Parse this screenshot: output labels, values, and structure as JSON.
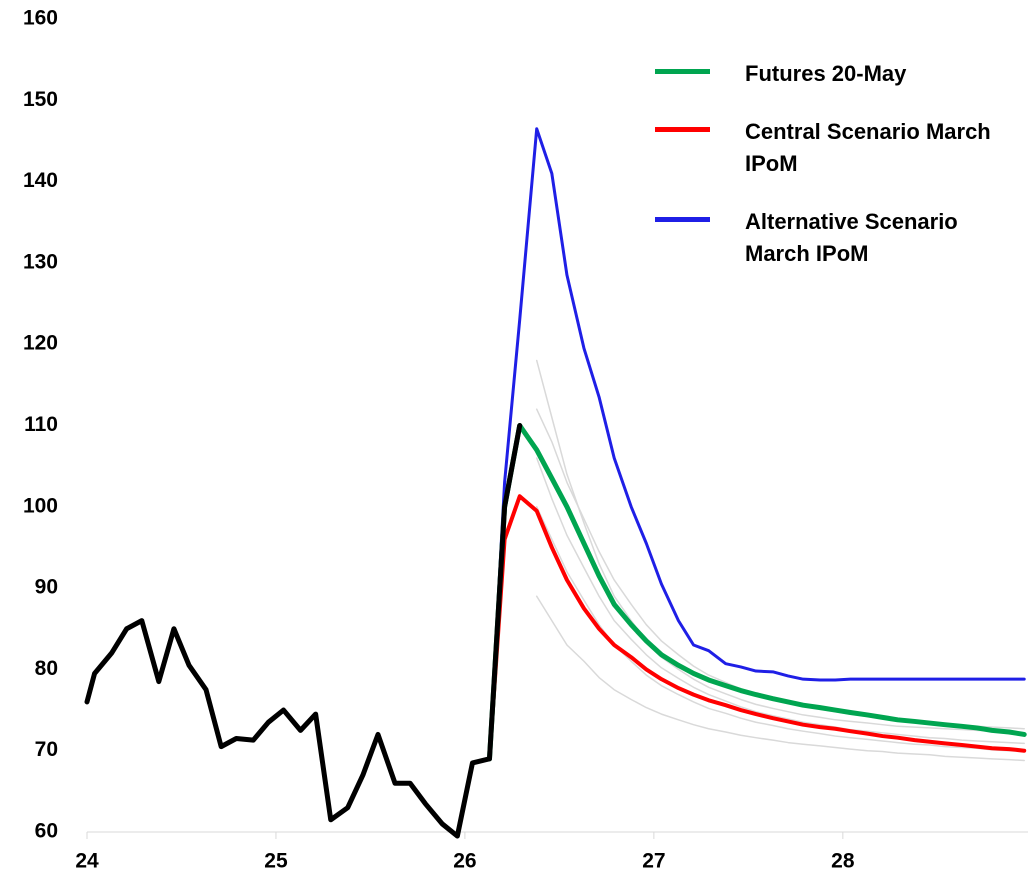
{
  "chart_data": {
    "type": "line",
    "xlim": [
      24,
      28.98
    ],
    "xticks": [
      24,
      25,
      26,
      27,
      28
    ],
    "ylim": [
      60,
      160
    ],
    "yticks": [
      60,
      70,
      80,
      90,
      100,
      110,
      120,
      130,
      140,
      150,
      160
    ],
    "legend": "upper right",
    "series": [
      {
        "color": "#d9d9d9",
        "x": [
          26.38,
          26.46,
          26.54,
          26.63,
          26.71,
          26.79,
          26.88,
          26.96,
          27.04,
          27.13,
          27.21,
          27.29,
          27.38,
          27.46,
          27.54,
          27.63,
          27.71,
          27.79,
          27.88,
          27.96,
          28.04,
          28.13,
          28.21,
          28.29,
          28.38,
          28.46,
          28.54,
          28.63,
          28.71,
          28.79,
          28.88,
          28.96
        ],
        "values": [
          118,
          111,
          104,
          98,
          93,
          89,
          86,
          83.5,
          81.5,
          80,
          78.8,
          77.8,
          77,
          76.3,
          75.7,
          75.2,
          74.8,
          74.4,
          74.1,
          73.8,
          73.6,
          73.4,
          73.2,
          73,
          72.9,
          72.8,
          72.7,
          72.6,
          72.5,
          72.4,
          72.3,
          72.2
        ]
      },
      {
        "color": "#d9d9d9",
        "x": [
          26.38,
          26.46,
          26.54,
          26.63,
          26.71,
          26.79,
          26.88,
          26.96,
          27.04,
          27.13,
          27.21,
          27.29,
          27.38,
          27.46,
          27.54,
          27.63,
          27.71,
          27.79,
          27.88,
          27.96,
          28.04,
          28.13,
          28.21,
          28.29,
          28.38,
          28.46,
          28.54,
          28.63,
          28.71,
          28.79,
          28.88,
          28.96
        ],
        "values": [
          89,
          86,
          83,
          81,
          79,
          77.5,
          76.3,
          75.3,
          74.5,
          73.8,
          73.2,
          72.7,
          72.3,
          71.9,
          71.6,
          71.3,
          71,
          70.8,
          70.6,
          70.4,
          70.2,
          70,
          69.9,
          69.7,
          69.6,
          69.5,
          69.3,
          69.2,
          69.1,
          69,
          68.9,
          68.8
        ]
      },
      {
        "color": "#d9d9d9",
        "x": [
          26.38,
          26.46,
          26.54,
          26.63,
          26.71,
          26.79,
          26.88,
          26.96,
          27.04,
          27.13,
          27.21,
          27.29,
          27.38,
          27.46,
          27.54,
          27.63,
          27.71,
          27.79,
          27.88,
          27.96,
          28.04,
          28.13,
          28.21,
          28.29,
          28.38,
          28.46,
          28.54,
          28.63,
          28.71,
          28.79,
          28.88,
          28.96
        ],
        "values": [
          112,
          108,
          103,
          98.5,
          94.5,
          91,
          88,
          85.5,
          83.5,
          81.8,
          80.4,
          79.3,
          78.4,
          77.6,
          77,
          76.4,
          75.9,
          75.5,
          75.1,
          74.8,
          74.5,
          74.2,
          74,
          73.8,
          73.6,
          73.4,
          73.2,
          73.1,
          73,
          72.9,
          72.8,
          72.7
        ]
      },
      {
        "color": "#d9d9d9",
        "x": [
          26.38,
          26.46,
          26.54,
          26.63,
          26.71,
          26.79,
          26.88,
          26.96,
          27.04,
          27.13,
          27.21,
          27.29,
          27.38,
          27.46,
          27.54,
          27.63,
          27.71,
          27.79,
          27.88,
          27.96,
          28.04,
          28.13,
          28.21,
          28.29,
          28.38,
          28.46,
          28.54,
          28.63,
          28.71,
          28.79,
          28.88,
          28.96
        ],
        "values": [
          100,
          96,
          92,
          88.5,
          85.5,
          83,
          81,
          79.3,
          78,
          76.9,
          76,
          75.2,
          74.6,
          74,
          73.5,
          73.1,
          72.7,
          72.4,
          72.1,
          71.8,
          71.6,
          71.4,
          71.2,
          71,
          70.8,
          70.7,
          70.5,
          70.4,
          70.3,
          70.1,
          70,
          69.9
        ]
      },
      {
        "color": "#d9d9d9",
        "x": [
          26.38,
          26.46,
          26.54,
          26.63,
          26.71,
          26.79,
          26.88,
          26.96,
          27.04,
          27.13,
          27.21,
          27.29,
          27.38,
          27.46,
          27.54,
          27.63,
          27.71,
          27.79,
          27.88,
          27.96,
          28.04,
          28.13,
          28.21,
          28.29,
          28.38,
          28.46,
          28.54,
          28.63,
          28.71,
          28.79,
          28.88,
          28.96
        ],
        "values": [
          106,
          101,
          96.5,
          92.5,
          89,
          86,
          83.7,
          81.8,
          80.2,
          78.9,
          77.8,
          76.9,
          76.1,
          75.4,
          74.8,
          74.3,
          73.9,
          73.5,
          73.2,
          72.9,
          72.6,
          72.4,
          72.2,
          72,
          71.8,
          71.6,
          71.5,
          71.3,
          71.2,
          71.1,
          71,
          70.9
        ]
      },
      {
        "name": "Alternative Scenario March IPoM",
        "color": "#1f1fe6",
        "x": [
          26.13,
          26.21,
          26.29,
          26.38,
          26.46,
          26.54,
          26.63,
          26.71,
          26.79,
          26.88,
          26.96,
          27.04,
          27.13,
          27.21,
          27.29,
          27.38,
          27.46,
          27.54,
          27.63,
          27.71,
          27.79,
          27.88,
          27.96,
          28.04,
          28.13,
          28.21,
          28.29,
          28.38,
          28.46,
          28.54,
          28.63,
          28.71,
          28.79,
          28.88,
          28.96
        ],
        "values": [
          69,
          103,
          123,
          146.5,
          141,
          128.5,
          119.5,
          113.5,
          106,
          100,
          95.5,
          90.5,
          86,
          83,
          82.3,
          80.7,
          80.3,
          79.8,
          79.7,
          79.2,
          78.8,
          78.7,
          78.7,
          78.8,
          78.8,
          78.8,
          78.8,
          78.8,
          78.8,
          78.8,
          78.8,
          78.8,
          78.8,
          78.8,
          78.8
        ]
      },
      {
        "name": "Central Scenario March IPoM",
        "color": "#ff0000",
        "x": [
          26.13,
          26.21,
          26.29,
          26.38,
          26.46,
          26.54,
          26.63,
          26.71,
          26.79,
          26.88,
          26.96,
          27.04,
          27.13,
          27.21,
          27.29,
          27.38,
          27.46,
          27.54,
          27.63,
          27.71,
          27.79,
          27.88,
          27.96,
          28.04,
          28.13,
          28.21,
          28.29,
          28.38,
          28.46,
          28.54,
          28.63,
          28.71,
          28.79,
          28.88,
          28.96
        ],
        "values": [
          69,
          96,
          101.3,
          99.5,
          95,
          91,
          87.5,
          85,
          83,
          81.5,
          80,
          78.8,
          77.7,
          76.9,
          76.2,
          75.6,
          75,
          74.5,
          74,
          73.6,
          73.2,
          72.9,
          72.7,
          72.4,
          72.1,
          71.8,
          71.6,
          71.3,
          71.1,
          70.9,
          70.7,
          70.5,
          70.3,
          70.2,
          70
        ]
      },
      {
        "name": "Futures 20-May",
        "color": "#00a550",
        "x": [
          26.13,
          26.21,
          26.29,
          26.38,
          26.46,
          26.54,
          26.63,
          26.71,
          26.79,
          26.88,
          26.96,
          27.04,
          27.13,
          27.21,
          27.29,
          27.38,
          27.46,
          27.54,
          27.63,
          27.71,
          27.79,
          27.88,
          27.96,
          28.04,
          28.13,
          28.21,
          28.29,
          28.38,
          28.46,
          28.54,
          28.63,
          28.71,
          28.79,
          28.88,
          28.96
        ],
        "values": [
          69,
          100,
          110,
          107,
          103.5,
          100,
          95.5,
          91.5,
          88,
          85.5,
          83.5,
          81.8,
          80.5,
          79.5,
          78.7,
          78,
          77.4,
          76.9,
          76.4,
          76,
          75.6,
          75.3,
          75,
          74.7,
          74.4,
          74.1,
          73.8,
          73.6,
          73.4,
          73.2,
          73,
          72.8,
          72.5,
          72.3,
          72
        ]
      },
      {
        "color": "#000000",
        "x": [
          24.0,
          24.04,
          24.13,
          24.21,
          24.29,
          24.38,
          24.46,
          24.54,
          24.63,
          24.71,
          24.79,
          24.88,
          24.96,
          25.04,
          25.13,
          25.21,
          25.29,
          25.38,
          25.46,
          25.54,
          25.63,
          25.71,
          25.79,
          25.88,
          25.96,
          26.04,
          26.13,
          26.21,
          26.29
        ],
        "values": [
          76,
          79.5,
          82,
          85,
          86,
          78.5,
          85,
          80.5,
          77.5,
          70.5,
          71.5,
          71.3,
          73.5,
          75,
          72.5,
          74.5,
          61.5,
          63,
          67,
          72,
          66,
          66,
          63.5,
          61,
          59.5,
          68.5,
          69,
          100,
          110
        ]
      }
    ]
  }
}
